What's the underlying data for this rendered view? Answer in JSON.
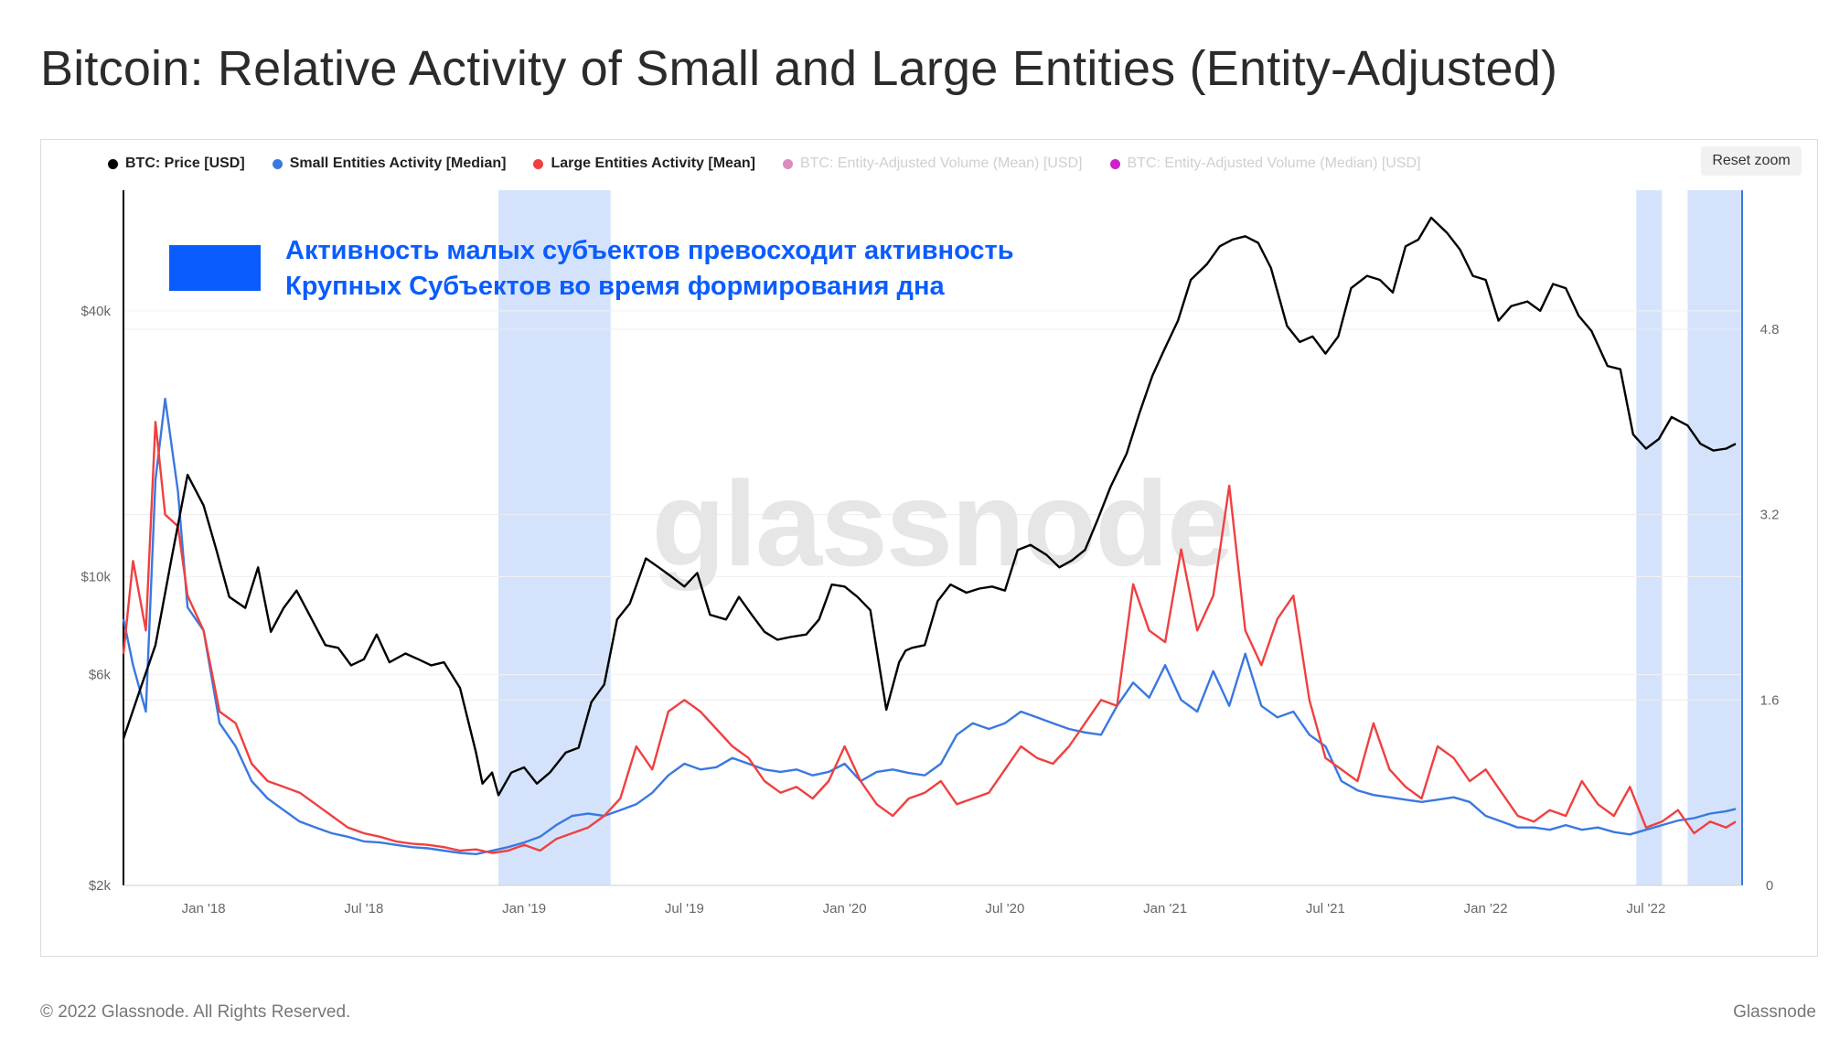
{
  "title": "Bitcoin: Relative Activity of Small and Large Entities (Entity-Adjusted)",
  "reset_zoom_label": "Reset zoom",
  "footer": {
    "copyright": "© 2022 Glassnode. All Rights Reserved.",
    "brand": "Glassnode"
  },
  "legend": [
    {
      "label": "BTC: Price [USD]",
      "color": "#000000",
      "active": true
    },
    {
      "label": "Small Entities Activity [Median]",
      "color": "#3a78e0",
      "active": true
    },
    {
      "label": "Large Entities Activity [Mean]",
      "color": "#f04040",
      "active": true
    },
    {
      "label": "BTC: Entity-Adjusted Volume (Mean) [USD]",
      "color": "#c8559e",
      "active": false
    },
    {
      "label": "BTC: Entity-Adjusted Volume (Median) [USD]",
      "color": "#cc22cc",
      "active": false
    }
  ],
  "annotation": {
    "line1": "Активность малых субъектов превосходит активность",
    "line2": "Крупных Субъектов во время формирования дна",
    "color": "#0a5cff"
  },
  "watermark": "glassnode",
  "chart_data": {
    "type": "line",
    "x_ticks": [
      "Jan '18",
      "Jul '18",
      "Jan '19",
      "Jul '19",
      "Jan '20",
      "Jul '20",
      "Jan '21",
      "Jul '21",
      "Jan '22",
      "Jul '22"
    ],
    "x_range": [
      2017.75,
      2022.8
    ],
    "y_left": {
      "scale": "log",
      "range": [
        2000,
        75000
      ],
      "ticks": [
        "$2k",
        "$6k",
        "$10k",
        "$40k"
      ],
      "tick_values": [
        2000,
        6000,
        10000,
        40000
      ]
    },
    "y_right": {
      "range": [
        0,
        6.0
      ],
      "ticks": [
        "0",
        "1.6",
        "3.2",
        "4.8"
      ],
      "tick_values": [
        0,
        1.6,
        3.2,
        4.8
      ]
    },
    "highlight_ranges": [
      [
        2018.92,
        2019.27
      ],
      [
        2022.47,
        2022.55
      ],
      [
        2022.63,
        2022.85
      ]
    ],
    "series": [
      {
        "name": "BTC: Price [USD]",
        "axis": "left",
        "color": "#000000",
        "x": [
          2017.75,
          2017.8,
          2017.85,
          2017.9,
          2017.95,
          2018.0,
          2018.04,
          2018.08,
          2018.13,
          2018.17,
          2018.21,
          2018.25,
          2018.29,
          2018.33,
          2018.38,
          2018.42,
          2018.46,
          2018.5,
          2018.54,
          2018.58,
          2018.63,
          2018.67,
          2018.71,
          2018.75,
          2018.8,
          2018.85,
          2018.87,
          2018.9,
          2018.92,
          2018.96,
          2019.0,
          2019.04,
          2019.08,
          2019.13,
          2019.17,
          2019.21,
          2019.25,
          2019.29,
          2019.33,
          2019.38,
          2019.42,
          2019.46,
          2019.5,
          2019.54,
          2019.58,
          2019.63,
          2019.67,
          2019.71,
          2019.75,
          2019.79,
          2019.83,
          2019.88,
          2019.92,
          2019.96,
          2020.0,
          2020.04,
          2020.08,
          2020.13,
          2020.17,
          2020.19,
          2020.21,
          2020.25,
          2020.29,
          2020.33,
          2020.38,
          2020.42,
          2020.46,
          2020.5,
          2020.54,
          2020.58,
          2020.63,
          2020.67,
          2020.71,
          2020.75,
          2020.79,
          2020.83,
          2020.88,
          2020.92,
          2020.96,
          2021.0,
          2021.04,
          2021.08,
          2021.13,
          2021.17,
          2021.21,
          2021.25,
          2021.29,
          2021.33,
          2021.38,
          2021.42,
          2021.46,
          2021.5,
          2021.54,
          2021.58,
          2021.63,
          2021.67,
          2021.71,
          2021.75,
          2021.79,
          2021.83,
          2021.88,
          2021.92,
          2021.96,
          2022.0,
          2022.04,
          2022.08,
          2022.13,
          2022.17,
          2022.21,
          2022.25,
          2022.29,
          2022.33,
          2022.38,
          2022.42,
          2022.46,
          2022.5,
          2022.54,
          2022.58,
          2022.63,
          2022.67,
          2022.71,
          2022.75,
          2022.78
        ],
        "y": [
          4300,
          5500,
          7000,
          11000,
          17000,
          14500,
          11500,
          9000,
          8500,
          10500,
          7500,
          8500,
          9300,
          8200,
          7000,
          6900,
          6300,
          6500,
          7400,
          6400,
          6700,
          6500,
          6300,
          6400,
          5600,
          4000,
          3400,
          3600,
          3200,
          3600,
          3700,
          3400,
          3600,
          4000,
          4100,
          5200,
          5700,
          8000,
          8700,
          11000,
          10500,
          10000,
          9500,
          10200,
          8200,
          8000,
          9000,
          8200,
          7500,
          7200,
          7300,
          7400,
          8000,
          9600,
          9500,
          9000,
          8400,
          5000,
          6400,
          6800,
          6900,
          7000,
          8800,
          9600,
          9200,
          9400,
          9500,
          9300,
          11500,
          11800,
          11200,
          10500,
          10900,
          11500,
          13500,
          16000,
          19000,
          23500,
          28500,
          33000,
          38000,
          47000,
          51000,
          56000,
          58000,
          59000,
          57000,
          50000,
          37000,
          34000,
          35000,
          32000,
          35000,
          45000,
          48000,
          47000,
          44000,
          56000,
          58000,
          65000,
          60000,
          55000,
          48000,
          47000,
          38000,
          41000,
          42000,
          40000,
          46000,
          45000,
          39000,
          36000,
          30000,
          29500,
          21000,
          19500,
          20500,
          23000,
          22000,
          20000,
          19300,
          19500,
          20000
        ]
      },
      {
        "name": "Small Entities Activity [Median]",
        "axis": "right",
        "color": "#3a78e0",
        "x": [
          2017.75,
          2017.78,
          2017.82,
          2017.85,
          2017.88,
          2017.92,
          2017.95,
          2018.0,
          2018.05,
          2018.1,
          2018.15,
          2018.2,
          2018.25,
          2018.3,
          2018.35,
          2018.4,
          2018.45,
          2018.5,
          2018.55,
          2018.6,
          2018.65,
          2018.7,
          2018.75,
          2018.8,
          2018.85,
          2018.9,
          2018.95,
          2019.0,
          2019.05,
          2019.1,
          2019.15,
          2019.2,
          2019.25,
          2019.3,
          2019.35,
          2019.4,
          2019.45,
          2019.5,
          2019.55,
          2019.6,
          2019.65,
          2019.7,
          2019.75,
          2019.8,
          2019.85,
          2019.9,
          2019.95,
          2020.0,
          2020.05,
          2020.1,
          2020.15,
          2020.2,
          2020.25,
          2020.3,
          2020.35,
          2020.4,
          2020.45,
          2020.5,
          2020.55,
          2020.6,
          2020.65,
          2020.7,
          2020.75,
          2020.8,
          2020.85,
          2020.9,
          2020.95,
          2021.0,
          2021.05,
          2021.1,
          2021.15,
          2021.2,
          2021.25,
          2021.3,
          2021.35,
          2021.4,
          2021.45,
          2021.5,
          2021.55,
          2021.6,
          2021.65,
          2021.7,
          2021.75,
          2021.8,
          2021.85,
          2021.9,
          2021.95,
          2022.0,
          2022.05,
          2022.1,
          2022.15,
          2022.2,
          2022.25,
          2022.3,
          2022.35,
          2022.4,
          2022.45,
          2022.5,
          2022.55,
          2022.6,
          2022.65,
          2022.7,
          2022.75,
          2022.78
        ],
        "y": [
          2.3,
          1.9,
          1.5,
          3.5,
          4.2,
          3.4,
          2.4,
          2.2,
          1.4,
          1.2,
          0.9,
          0.75,
          0.65,
          0.55,
          0.5,
          0.45,
          0.42,
          0.38,
          0.37,
          0.35,
          0.33,
          0.32,
          0.3,
          0.28,
          0.27,
          0.3,
          0.33,
          0.37,
          0.42,
          0.52,
          0.6,
          0.62,
          0.6,
          0.65,
          0.7,
          0.8,
          0.95,
          1.05,
          1.0,
          1.02,
          1.1,
          1.05,
          1.0,
          0.98,
          1.0,
          0.95,
          0.98,
          1.05,
          0.9,
          0.98,
          1.0,
          0.97,
          0.95,
          1.05,
          1.3,
          1.4,
          1.35,
          1.4,
          1.5,
          1.45,
          1.4,
          1.35,
          1.32,
          1.3,
          1.55,
          1.75,
          1.62,
          1.9,
          1.6,
          1.5,
          1.85,
          1.55,
          2.0,
          1.55,
          1.45,
          1.5,
          1.3,
          1.2,
          0.9,
          0.82,
          0.78,
          0.76,
          0.74,
          0.72,
          0.74,
          0.76,
          0.72,
          0.6,
          0.55,
          0.5,
          0.5,
          0.48,
          0.52,
          0.48,
          0.5,
          0.46,
          0.44,
          0.48,
          0.52,
          0.56,
          0.58,
          0.62,
          0.64,
          0.66
        ]
      },
      {
        "name": "Large Entities Activity [Mean]",
        "axis": "right",
        "color": "#f04040",
        "x": [
          2017.75,
          2017.78,
          2017.82,
          2017.85,
          2017.88,
          2017.92,
          2017.95,
          2018.0,
          2018.05,
          2018.1,
          2018.15,
          2018.2,
          2018.25,
          2018.3,
          2018.35,
          2018.4,
          2018.45,
          2018.5,
          2018.55,
          2018.6,
          2018.65,
          2018.7,
          2018.75,
          2018.8,
          2018.85,
          2018.9,
          2018.95,
          2019.0,
          2019.05,
          2019.1,
          2019.15,
          2019.2,
          2019.25,
          2019.3,
          2019.35,
          2019.4,
          2019.45,
          2019.5,
          2019.55,
          2019.6,
          2019.65,
          2019.7,
          2019.75,
          2019.8,
          2019.85,
          2019.9,
          2019.95,
          2020.0,
          2020.05,
          2020.1,
          2020.15,
          2020.2,
          2020.25,
          2020.3,
          2020.35,
          2020.4,
          2020.45,
          2020.5,
          2020.55,
          2020.6,
          2020.65,
          2020.7,
          2020.75,
          2020.8,
          2020.85,
          2020.9,
          2020.95,
          2021.0,
          2021.05,
          2021.1,
          2021.15,
          2021.2,
          2021.25,
          2021.3,
          2021.35,
          2021.4,
          2021.45,
          2021.5,
          2021.55,
          2021.6,
          2021.65,
          2021.7,
          2021.75,
          2021.8,
          2021.85,
          2021.9,
          2021.95,
          2022.0,
          2022.05,
          2022.1,
          2022.15,
          2022.2,
          2022.25,
          2022.3,
          2022.35,
          2022.4,
          2022.45,
          2022.5,
          2022.55,
          2022.6,
          2022.65,
          2022.7,
          2022.75,
          2022.78
        ],
        "y": [
          2.0,
          2.8,
          2.2,
          4.0,
          3.2,
          3.1,
          2.5,
          2.2,
          1.5,
          1.4,
          1.05,
          0.9,
          0.85,
          0.8,
          0.7,
          0.6,
          0.5,
          0.45,
          0.42,
          0.38,
          0.36,
          0.35,
          0.33,
          0.3,
          0.31,
          0.28,
          0.3,
          0.35,
          0.3,
          0.4,
          0.45,
          0.5,
          0.6,
          0.75,
          1.2,
          1.0,
          1.5,
          1.6,
          1.5,
          1.35,
          1.2,
          1.1,
          0.9,
          0.8,
          0.85,
          0.75,
          0.9,
          1.2,
          0.9,
          0.7,
          0.6,
          0.75,
          0.8,
          0.9,
          0.7,
          0.75,
          0.8,
          1.0,
          1.2,
          1.1,
          1.05,
          1.2,
          1.4,
          1.6,
          1.55,
          2.6,
          2.2,
          2.1,
          2.9,
          2.2,
          2.5,
          3.45,
          2.2,
          1.9,
          2.3,
          2.5,
          1.6,
          1.1,
          1.0,
          0.9,
          1.4,
          1.0,
          0.85,
          0.75,
          1.2,
          1.1,
          0.9,
          1.0,
          0.8,
          0.6,
          0.55,
          0.65,
          0.6,
          0.9,
          0.7,
          0.6,
          0.85,
          0.5,
          0.55,
          0.65,
          0.45,
          0.55,
          0.5,
          0.55
        ]
      }
    ]
  }
}
